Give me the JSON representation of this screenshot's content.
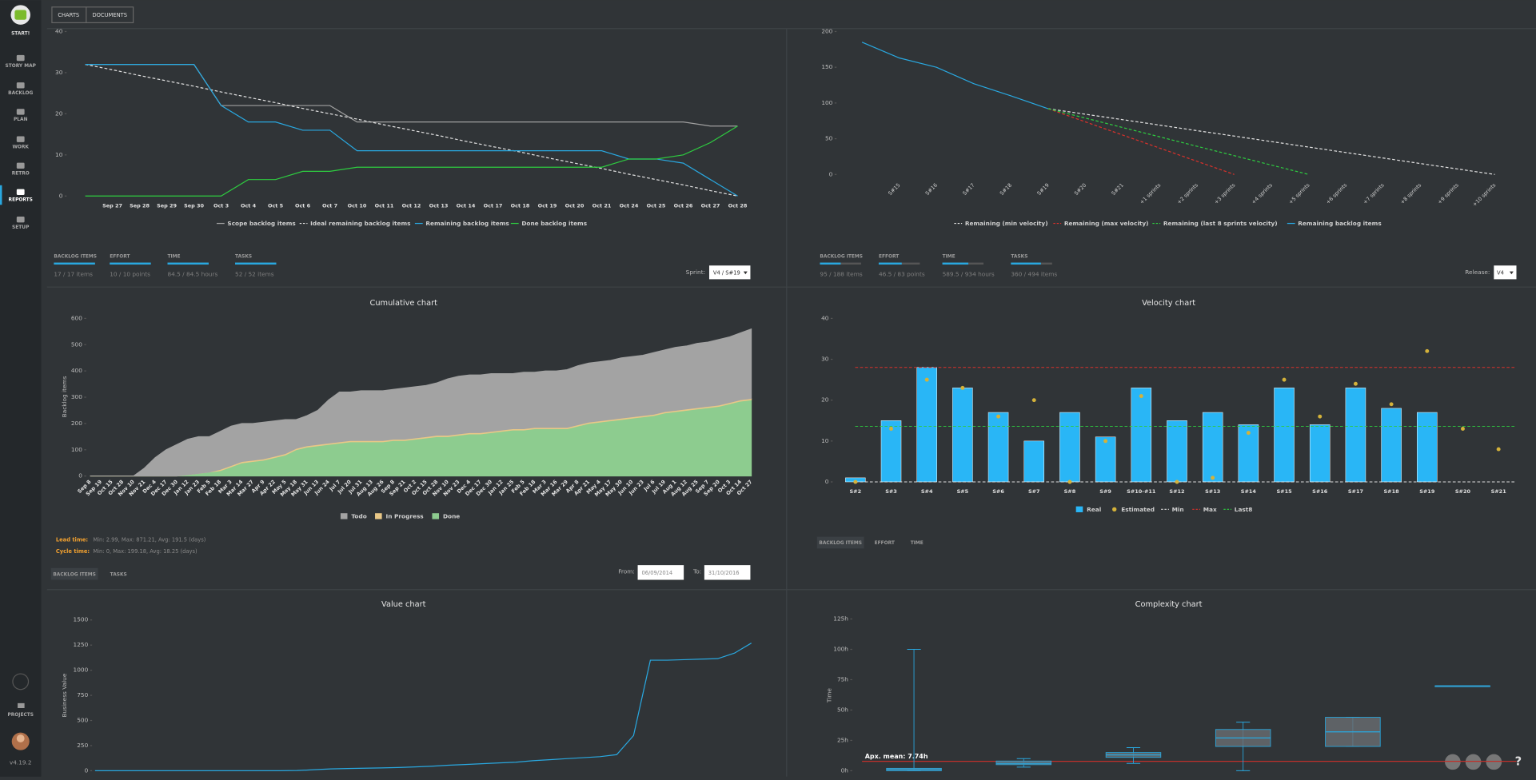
{
  "app": {
    "logo_label": "START!",
    "nav": [
      "STORY MAP",
      "BACKLOG",
      "PLAN",
      "WORK",
      "RETRO",
      "REPORTS",
      "SETUP"
    ],
    "projects": "PROJECTS",
    "version": "v4.19.2",
    "tabs": [
      "CHARTS",
      "DOCUMENTS"
    ],
    "help": "?"
  },
  "sprint_panel": {
    "tiles": [
      {
        "label": "BACKLOG ITEMS",
        "value": "17 / 17 items"
      },
      {
        "label": "EFFORT",
        "value": "10 / 10 points"
      },
      {
        "label": "TIME",
        "value": "84.5 / 84.5 hours"
      },
      {
        "label": "TASKS",
        "value": "52 / 52 items"
      }
    ],
    "select_label": "Sprint:",
    "select_value": "V4 / S#19"
  },
  "release_panel": {
    "tiles": [
      {
        "label": "BACKLOG ITEMS",
        "value": "95 / 188 items"
      },
      {
        "label": "EFFORT",
        "value": "46.5 / 83 points"
      },
      {
        "label": "TIME",
        "value": "589.5 / 934 hours"
      },
      {
        "label": "TASKS",
        "value": "360 / 494 items"
      }
    ],
    "select_label": "Release:",
    "select_value": "V4"
  },
  "cumulative_panel": {
    "lead_label": "Lead time:",
    "lead_value": "Min: 2.99, Max: 871.21, Avg: 191.5 (days)",
    "cycle_label": "Cycle time:",
    "cycle_value": "Min: 0, Max: 199.18, Avg: 18.25 (days)",
    "tabs": [
      "BACKLOG ITEMS",
      "TASKS"
    ],
    "from_label": "From:",
    "from_value": "06/09/2014",
    "to_label": "To:",
    "to_value": "31/10/2016"
  },
  "velocity_panel": {
    "tabs": [
      "BACKLOG ITEMS",
      "EFFORT",
      "TIME"
    ]
  },
  "chart_data": [
    {
      "type": "line",
      "categories": [
        null,
        "Sep 27",
        "Sep 28",
        "Sep 29",
        "Sep 30",
        "Oct 3",
        "Oct 4",
        "Oct 5",
        "Oct 6",
        "Oct 7",
        "Oct 10",
        "Oct 11",
        "Oct 12",
        "Oct 13",
        "Oct 14",
        "Oct 17",
        "Oct 18",
        "Oct 19",
        "Oct 20",
        "Oct 21",
        "Oct 24",
        "Oct 25",
        "Oct 26",
        "Oct 27",
        "Oct 28"
      ],
      "ylim": [
        0,
        40
      ],
      "yticks": [
        0,
        10,
        20,
        30,
        40
      ],
      "series": [
        {
          "name": "Scope backlog items",
          "color": "#a0a0a0",
          "style": "solid",
          "values": [
            32,
            32,
            32,
            32,
            32,
            22,
            22,
            22,
            22,
            22,
            18,
            18,
            18,
            18,
            18,
            18,
            18,
            18,
            18,
            18,
            18,
            18,
            18,
            17,
            17
          ]
        },
        {
          "name": "Ideal remaining backlog items",
          "color": "#e0e0e0",
          "style": "dashed",
          "values": [
            32,
            30.7,
            29.3,
            28,
            26.7,
            25.3,
            24,
            22.7,
            21.3,
            20,
            18.7,
            17.3,
            16,
            14.7,
            13.3,
            12,
            10.7,
            9.3,
            8,
            6.7,
            5.3,
            4,
            2.7,
            1.3,
            0
          ]
        },
        {
          "name": "Remaining backlog items",
          "color": "#29a8e0",
          "style": "solid",
          "values": [
            32,
            32,
            32,
            32,
            32,
            22,
            18,
            18,
            16,
            16,
            11,
            11,
            11,
            11,
            11,
            11,
            11,
            11,
            11,
            11,
            9,
            9,
            8,
            4,
            0
          ]
        },
        {
          "name": "Done backlog items",
          "color": "#2ecc40",
          "style": "solid",
          "values": [
            0,
            0,
            0,
            0,
            0,
            0,
            4,
            4,
            6,
            6,
            7,
            7,
            7,
            7,
            7,
            7,
            7,
            7,
            7,
            7,
            9,
            9,
            10,
            13,
            17
          ]
        }
      ]
    },
    {
      "type": "line",
      "categories": [
        null,
        "S#15",
        "S#16",
        "S#17",
        "S#18",
        "S#19",
        "S#20",
        "S#21",
        "+1 sprints",
        "+2 sprints",
        "+3 sprints",
        "+4 sprints",
        "+5 sprints",
        "+6 sprints",
        "+7 sprints",
        "+8 sprints",
        "+9 sprints",
        "+10 sprints"
      ],
      "ylim": [
        0,
        200
      ],
      "yticks": [
        0,
        50,
        100,
        150,
        200
      ],
      "series": [
        {
          "name": "Remaining (min velocity)",
          "color": "#e0e0e0",
          "style": "dashed",
          "values": [
            null,
            null,
            null,
            null,
            null,
            92,
            84.3,
            76.7,
            69,
            61.3,
            53.7,
            46,
            38.3,
            30.7,
            23,
            15.3,
            7.7,
            0
          ]
        },
        {
          "name": "Remaining (max velocity)",
          "color": "#d9312b",
          "style": "dashed",
          "values": [
            null,
            null,
            null,
            null,
            null,
            92,
            73.6,
            55.2,
            36.8,
            18.4,
            0,
            null,
            null,
            null,
            null,
            null,
            null,
            null
          ]
        },
        {
          "name": "Remaining (last 8 sprints velocity)",
          "color": "#2ecc40",
          "style": "dashed",
          "values": [
            null,
            null,
            null,
            null,
            null,
            92,
            78.9,
            65.7,
            52.6,
            39.4,
            26.3,
            13.1,
            0,
            null,
            null,
            null,
            null,
            null
          ]
        },
        {
          "name": "Remaining backlog items",
          "color": "#29a8e0",
          "style": "solid",
          "values": [
            185,
            163,
            150,
            127,
            110,
            92,
            null,
            null,
            null,
            null,
            null,
            null,
            null,
            null,
            null,
            null,
            null,
            null
          ]
        }
      ]
    },
    {
      "type": "stacked_area",
      "title": "Cumulative chart",
      "ylabel": "Backlog items",
      "categories": [
        "Sep 8",
        "Sep 19",
        "Oct 15",
        "Oct 28",
        "Nov 10",
        "Nov 21",
        "Dec 4",
        "Dec 17",
        "Dec 30",
        "Jan 12",
        "Jan 23",
        "Feb 5",
        "Feb 18",
        "Mar 3",
        "Mar 14",
        "Mar 27",
        "Apr 9",
        "Apr 22",
        "May 5",
        "May 18",
        "May 31",
        "Jun 13",
        "Jun 24",
        "Jul 7",
        "Jul 20",
        "Jul 31",
        "Aug 13",
        "Aug 26",
        "Sep 8",
        "Sep 21",
        "Oct 2",
        "Oct 15",
        "Oct 28",
        "Nov 10",
        "Nov 23",
        "Dec 4",
        "Dec 17",
        "Dec 30",
        "Jan 12",
        "Jan 25",
        "Feb 5",
        "Feb 18",
        "Mar 3",
        "Mar 16",
        "Mar 29",
        "Apr 8",
        "Apr 21",
        "May 4",
        "May 17",
        "May 30",
        "Jun 10",
        "Jun 23",
        "Jul 6",
        "Jul 19",
        "Aug 1",
        "Aug 12",
        "Aug 25",
        "Sep 7",
        "Sep 20",
        "Oct 3",
        "Oct 14",
        "Oct 27"
      ],
      "ylim": [
        0,
        600
      ],
      "yticks": [
        0,
        100,
        200,
        300,
        400,
        500,
        600
      ],
      "series": [
        {
          "name": "Todo",
          "color": "#a3a3a3",
          "values": [
            0,
            0,
            0,
            0,
            0,
            30,
            70,
            100,
            120,
            135,
            140,
            135,
            145,
            150,
            145,
            140,
            140,
            135,
            130,
            110,
            115,
            130,
            165,
            190,
            185,
            190,
            190,
            190,
            190,
            195,
            195,
            195,
            200,
            215,
            220,
            220,
            220,
            220,
            215,
            210,
            215,
            210,
            215,
            215,
            220,
            225,
            225,
            225,
            225,
            230,
            230,
            230,
            235,
            235,
            240,
            240,
            245,
            245,
            250,
            250,
            255,
            265
          ]
        },
        {
          "name": "In Progress",
          "color": "#e9c887",
          "values": [
            0,
            0,
            0,
            0,
            0,
            0,
            0,
            0,
            0,
            0,
            0,
            0,
            5,
            5,
            5,
            5,
            5,
            5,
            5,
            5,
            5,
            5,
            5,
            5,
            5,
            5,
            5,
            5,
            5,
            5,
            5,
            5,
            5,
            5,
            5,
            5,
            5,
            5,
            5,
            5,
            5,
            5,
            5,
            5,
            5,
            5,
            5,
            5,
            5,
            5,
            5,
            5,
            5,
            5,
            5,
            5,
            5,
            5,
            5,
            5,
            5,
            5
          ]
        },
        {
          "name": "Done",
          "color": "#8dcc8f",
          "values": [
            0,
            0,
            0,
            0,
            0,
            0,
            0,
            0,
            0,
            5,
            10,
            15,
            20,
            35,
            50,
            55,
            60,
            70,
            80,
            100,
            110,
            115,
            120,
            125,
            130,
            130,
            130,
            130,
            135,
            135,
            140,
            145,
            150,
            150,
            155,
            160,
            160,
            165,
            170,
            175,
            175,
            180,
            180,
            180,
            180,
            190,
            200,
            205,
            210,
            215,
            220,
            225,
            230,
            240,
            245,
            250,
            255,
            260,
            265,
            275,
            285,
            290
          ]
        }
      ]
    },
    {
      "type": "bar",
      "title": "Velocity chart",
      "categories": [
        "S#2",
        "S#3",
        "S#4",
        "S#5",
        "S#6",
        "S#7",
        "S#8",
        "S#9",
        "S#10-#11",
        "S#12",
        "S#13",
        "S#14",
        "S#15",
        "S#16",
        "S#17",
        "S#18",
        "S#19",
        "S#20",
        "S#21"
      ],
      "ylim": [
        0,
        40
      ],
      "yticks": [
        0,
        10,
        20,
        30,
        40
      ],
      "series": [
        {
          "name": "Real",
          "color": "#29b6f6",
          "values": [
            1,
            15,
            28,
            23,
            17,
            10,
            17,
            11,
            23,
            15,
            17,
            14,
            23,
            14,
            23,
            18,
            17,
            null,
            null
          ]
        },
        {
          "name": "Estimated",
          "color": "#d4b23a",
          "values": [
            0,
            13,
            25,
            23,
            16,
            20,
            0,
            10,
            21,
            0,
            1,
            12,
            25,
            16,
            24,
            19,
            32,
            13,
            8
          ]
        }
      ],
      "reference_lines": [
        {
          "name": "Min",
          "color": "#dddddd",
          "value": 0
        },
        {
          "name": "Max",
          "color": "#d9312b",
          "value": 28
        },
        {
          "name": "Last8",
          "color": "#2ecc40",
          "value": 13.6
        }
      ]
    },
    {
      "type": "line",
      "title": "Value chart",
      "ylabel": "Business Value",
      "ylim": [
        0,
        1500
      ],
      "yticks": [
        0,
        250,
        500,
        750,
        1000,
        1250,
        1500
      ],
      "color": "#29a8e0",
      "values": [
        0,
        0,
        0,
        0,
        0,
        0,
        0,
        0,
        0,
        0,
        0,
        0,
        2,
        10,
        18,
        22,
        25,
        28,
        32,
        38,
        45,
        55,
        62,
        70,
        78,
        85,
        100,
        110,
        120,
        130,
        140,
        160,
        350,
        1100,
        1100,
        1105,
        1110,
        1115,
        1170,
        1270
      ]
    },
    {
      "type": "box",
      "title": "Complexity chart",
      "ylabel": "Time",
      "ylim": [
        0,
        125
      ],
      "yticks": [
        {
          "value": 0,
          "label": "0h"
        },
        {
          "value": 25,
          "label": "25h"
        },
        {
          "value": 50,
          "label": "50h"
        },
        {
          "value": 75,
          "label": "75h"
        },
        {
          "value": 100,
          "label": "100h"
        },
        {
          "value": 125,
          "label": "125h"
        }
      ],
      "boxes": [
        {
          "min": 0,
          "q1": 0,
          "median": 1,
          "q3": 2,
          "max": 100
        },
        {
          "min": 3,
          "q1": 5,
          "median": 6,
          "q3": 8,
          "max": 10
        },
        {
          "min": 6,
          "q1": 11,
          "median": 13,
          "q3": 15,
          "max": 19
        },
        {
          "min": 0,
          "q1": 20,
          "median": 27,
          "q3": 34,
          "max": 40
        },
        {
          "min": 20,
          "q1": 20,
          "median": 32,
          "q3": 44,
          "max": 44
        },
        {
          "min": 70,
          "q1": 70,
          "median": 70,
          "q3": 70,
          "max": 70
        }
      ],
      "mean": 7.74,
      "annotation": "Apx. mean: 7.74h",
      "mean_color": "#c0302a",
      "color": "#29a8e0"
    }
  ]
}
